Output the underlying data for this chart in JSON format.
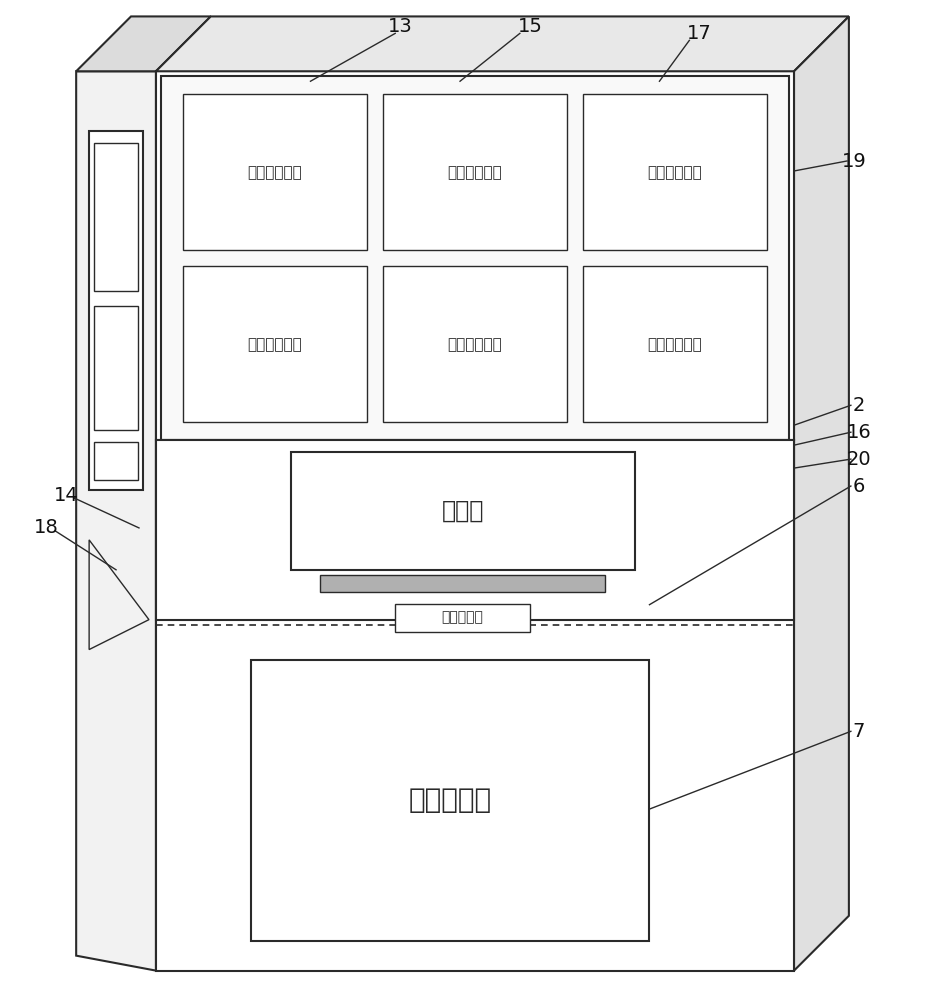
{
  "bg_color": "#ffffff",
  "line_color": "#2a2a2a",
  "modules": [
    {
      "label": "显示系统模块",
      "col": 0,
      "row": 0
    },
    {
      "label": "扫描系统模块",
      "col": 1,
      "row": 0
    },
    {
      "label": "电机驱动模块",
      "col": 2,
      "row": 0
    },
    {
      "label": "打印系统模块",
      "col": 0,
      "row": 1
    },
    {
      "label": "收现找零模块",
      "col": 1,
      "row": 1
    },
    {
      "label": "网络交互模块",
      "col": 2,
      "row": 1
    }
  ],
  "module_font_size": 11,
  "label_font_size": 14,
  "weigh_box_label": "称重箱",
  "storage_box_label": "快递存储箱",
  "pressure_label": "压力传感器",
  "weigh_font_size": 17,
  "storage_font_size": 20,
  "pressure_font_size": 10
}
